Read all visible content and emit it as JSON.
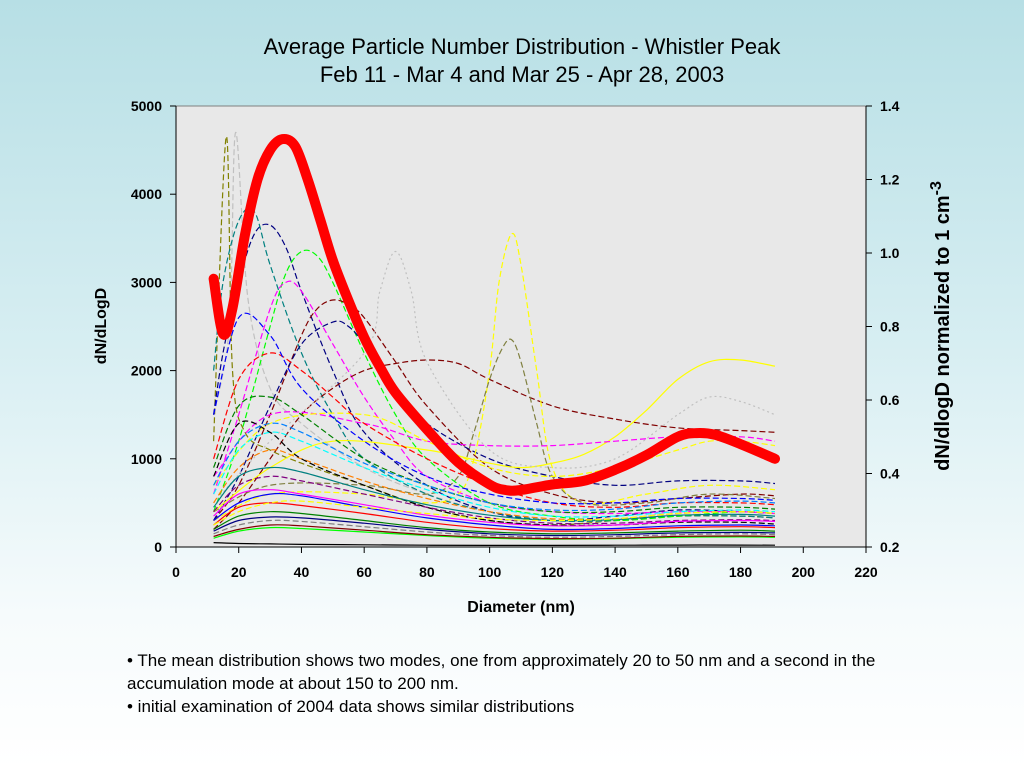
{
  "chart_data": {
    "type": "line",
    "title": "Average Particle Number Distribution - Whistler Peak",
    "subtitle": "Feb 11 - Mar 4 and Mar 25 - Apr 28, 2003",
    "xlabel": "Diameter (nm)",
    "ylabel": "dN/dLogD",
    "y2label_main": "dN/dlogD normalized to 1 cm",
    "y2label_sup": "-3",
    "xlim": [
      0,
      220
    ],
    "ylim": [
      0,
      5000
    ],
    "y2lim": [
      0.2,
      1.4
    ],
    "x_ticks": [
      "0",
      "20",
      "40",
      "60",
      "80",
      "100",
      "120",
      "140",
      "160",
      "180",
      "200",
      "220"
    ],
    "y_ticks": [
      "0",
      "1000",
      "2000",
      "3000",
      "4000",
      "5000"
    ],
    "y2_ticks": [
      "0.2",
      "0.4",
      "0.6",
      "0.8",
      "1.0",
      "1.2",
      "1.4"
    ],
    "plot_background": "#e8e8e8",
    "grid": false,
    "legend": "none",
    "mean_series": {
      "axis": "right",
      "color": "#ff0000",
      "x": [
        12,
        15,
        18,
        22,
        26,
        30,
        34,
        38,
        42,
        46,
        50,
        55,
        60,
        65,
        70,
        80,
        90,
        100,
        105,
        110,
        120,
        130,
        140,
        150,
        160,
        166,
        172,
        180,
        191
      ],
      "y": [
        0.93,
        0.78,
        0.85,
        1.05,
        1.2,
        1.28,
        1.31,
        1.29,
        1.2,
        1.09,
        0.98,
        0.87,
        0.77,
        0.69,
        0.62,
        0.52,
        0.43,
        0.37,
        0.355,
        0.355,
        0.37,
        0.38,
        0.41,
        0.45,
        0.5,
        0.51,
        0.505,
        0.48,
        0.44
      ]
    },
    "individual_series": [
      {
        "color": "#808000",
        "style": "dashed",
        "x": [
          12,
          16,
          18,
          22,
          30,
          40,
          60,
          80,
          100,
          120,
          140,
          160,
          180,
          191
        ],
        "y": [
          1200,
          4650,
          2000,
          1300,
          1100,
          950,
          700,
          450,
          300,
          250,
          300,
          350,
          350,
          330
        ]
      },
      {
        "color": "#c0c0c0",
        "style": "dashed",
        "x": [
          12,
          17,
          19,
          23,
          30,
          40,
          60,
          80,
          100,
          120,
          140,
          160,
          180,
          191
        ],
        "y": [
          1500,
          2500,
          4700,
          2800,
          1800,
          1400,
          900,
          600,
          400,
          300,
          300,
          400,
          400,
          380
        ]
      },
      {
        "color": "#000080",
        "style": "dashed",
        "x": [
          12,
          15,
          20,
          25,
          30,
          35,
          40,
          50,
          60,
          80,
          100,
          120,
          140,
          160,
          180,
          191
        ],
        "y": [
          1500,
          2200,
          3000,
          3550,
          3650,
          3400,
          2900,
          2000,
          1300,
          700,
          400,
          300,
          350,
          420,
          400,
          380
        ]
      },
      {
        "color": "#008080",
        "style": "dashed",
        "x": [
          12,
          15,
          20,
          25,
          30,
          40,
          50,
          60,
          80,
          100,
          120,
          140,
          160,
          180,
          191
        ],
        "y": [
          2000,
          3000,
          3700,
          3800,
          3200,
          2200,
          1500,
          1000,
          600,
          400,
          300,
          300,
          350,
          350,
          330
        ]
      },
      {
        "color": "#00ff00",
        "style": "dashed",
        "x": [
          12,
          20,
          30,
          35,
          40,
          45,
          50,
          60,
          70,
          80,
          100,
          120,
          140,
          160,
          180,
          191
        ],
        "y": [
          400,
          1200,
          2500,
          3100,
          3350,
          3300,
          3000,
          2200,
          1500,
          1000,
          500,
          350,
          300,
          350,
          400,
          380
        ]
      },
      {
        "color": "#ff00ff",
        "style": "dashed",
        "x": [
          12,
          20,
          30,
          35,
          40,
          50,
          60,
          70,
          80,
          100,
          120,
          140,
          160,
          180,
          191
        ],
        "y": [
          600,
          1500,
          2700,
          3000,
          2900,
          2300,
          1700,
          1200,
          800,
          500,
          400,
          380,
          400,
          400,
          380
        ]
      },
      {
        "color": "#800000",
        "style": "dashed",
        "x": [
          12,
          20,
          30,
          40,
          45,
          50,
          55,
          60,
          70,
          80,
          100,
          120,
          140,
          160,
          180,
          191
        ],
        "y": [
          300,
          700,
          1500,
          2400,
          2700,
          2800,
          2750,
          2600,
          2100,
          1600,
          900,
          600,
          500,
          550,
          600,
          580
        ]
      },
      {
        "color": "#800000",
        "style": "dashed",
        "x": [
          12,
          20,
          30,
          40,
          50,
          60,
          70,
          80,
          90,
          100,
          120,
          140,
          160,
          180,
          191
        ],
        "y": [
          200,
          500,
          1000,
          1500,
          1800,
          2000,
          2080,
          2120,
          2080,
          1900,
          1600,
          1450,
          1350,
          1320,
          1300
        ]
      },
      {
        "color": "#000080",
        "style": "dashed",
        "x": [
          12,
          20,
          30,
          40,
          50,
          55,
          60,
          70,
          80,
          100,
          120,
          140,
          160,
          180,
          191
        ],
        "y": [
          300,
          800,
          1600,
          2300,
          2550,
          2500,
          2300,
          1800,
          1400,
          1000,
          800,
          700,
          750,
          750,
          720
        ]
      },
      {
        "color": "#ffff00",
        "style": "dashed",
        "x": [
          12,
          30,
          60,
          80,
          90,
          95,
          100,
          103,
          107,
          110,
          115,
          120,
          130,
          150,
          170,
          191
        ],
        "y": [
          300,
          600,
          600,
          500,
          600,
          1000,
          2000,
          3000,
          3550,
          3200,
          2000,
          900,
          500,
          600,
          700,
          650
        ]
      },
      {
        "color": "#808040",
        "style": "dashed",
        "x": [
          12,
          30,
          60,
          80,
          90,
          95,
          100,
          104,
          107,
          110,
          115,
          120,
          130,
          150,
          170,
          191
        ],
        "y": [
          400,
          700,
          700,
          600,
          800,
          1300,
          1900,
          2250,
          2350,
          2100,
          1400,
          800,
          500,
          500,
          600,
          550
        ]
      },
      {
        "color": "#ffff00",
        "style": "solid",
        "x": [
          12,
          30,
          50,
          80,
          100,
          110,
          120,
          130,
          140,
          150,
          160,
          170,
          180,
          191
        ],
        "y": [
          400,
          900,
          1200,
          1100,
          950,
          900,
          950,
          1050,
          1250,
          1550,
          1900,
          2100,
          2120,
          2050
        ]
      },
      {
        "color": "#c0c0c0",
        "style": "dotted",
        "x": [
          12,
          30,
          60,
          65,
          70,
          75,
          80,
          100,
          120,
          140,
          160,
          170,
          180,
          191
        ],
        "y": [
          500,
          1200,
          2200,
          2900,
          3350,
          2900,
          2100,
          1100,
          900,
          1000,
          1500,
          1700,
          1650,
          1500
        ]
      },
      {
        "color": "#ff00ff",
        "style": "dashed",
        "x": [
          12,
          30,
          60,
          80,
          100,
          120,
          140,
          160,
          180,
          191
        ],
        "y": [
          800,
          1500,
          1400,
          1200,
          1150,
          1150,
          1200,
          1250,
          1250,
          1200
        ]
      },
      {
        "color": "#ffff00",
        "style": "dashed",
        "x": [
          12,
          30,
          60,
          80,
          100,
          120,
          140,
          160,
          170,
          180,
          191
        ],
        "y": [
          700,
          1400,
          1500,
          1200,
          900,
          800,
          900,
          1100,
          1200,
          1200,
          1150
        ]
      },
      {
        "color": "#ff0000",
        "style": "dashed",
        "x": [
          12,
          20,
          30,
          40,
          50,
          60,
          80,
          100,
          120,
          140,
          160,
          180,
          191
        ],
        "y": [
          1000,
          1900,
          2200,
          2000,
          1700,
          1400,
          1000,
          700,
          500,
          450,
          500,
          500,
          480
        ]
      },
      {
        "color": "#0000ff",
        "style": "dashed",
        "x": [
          12,
          20,
          30,
          40,
          60,
          80,
          100,
          120,
          140,
          160,
          180,
          191
        ],
        "y": [
          1500,
          2600,
          2400,
          1800,
          1200,
          800,
          600,
          500,
          500,
          550,
          550,
          530
        ]
      },
      {
        "color": "#008000",
        "style": "dashed",
        "x": [
          12,
          20,
          30,
          40,
          60,
          80,
          100,
          120,
          140,
          160,
          180,
          191
        ],
        "y": [
          900,
          1600,
          1700,
          1500,
          1000,
          700,
          500,
          400,
          400,
          450,
          450,
          430
        ]
      },
      {
        "color": "#00ffff",
        "style": "dashed",
        "x": [
          12,
          20,
          30,
          40,
          60,
          80,
          100,
          120,
          140,
          160,
          180,
          191
        ],
        "y": [
          600,
          1100,
          1300,
          1200,
          900,
          650,
          450,
          350,
          350,
          400,
          420,
          400
        ]
      },
      {
        "color": "#ff8000",
        "style": "dashed",
        "x": [
          12,
          20,
          30,
          40,
          60,
          80,
          100,
          120,
          140,
          160,
          180,
          191
        ],
        "y": [
          500,
          900,
          1100,
          1000,
          750,
          550,
          400,
          320,
          320,
          380,
          400,
          380
        ]
      },
      {
        "color": "#000000",
        "style": "dashed",
        "x": [
          12,
          20,
          30,
          40,
          60,
          80,
          100,
          120,
          140,
          160,
          180,
          191
        ],
        "y": [
          800,
          1400,
          1300,
          1000,
          700,
          450,
          300,
          250,
          250,
          280,
          280,
          260
        ]
      },
      {
        "color": "#000000",
        "style": "solid",
        "x": [
          12,
          20,
          30,
          40,
          60,
          80,
          100,
          120,
          140,
          160,
          180,
          191
        ],
        "y": [
          50,
          40,
          35,
          30,
          25,
          20,
          18,
          18,
          20,
          22,
          22,
          20
        ]
      },
      {
        "color": "#800080",
        "style": "dashed",
        "x": [
          12,
          20,
          30,
          40,
          60,
          80,
          100,
          120,
          140,
          160,
          180,
          191
        ],
        "y": [
          400,
          700,
          800,
          750,
          600,
          450,
          330,
          270,
          270,
          300,
          310,
          300
        ]
      },
      {
        "color": "#0000ff",
        "style": "solid",
        "x": [
          12,
          20,
          30,
          40,
          60,
          80,
          100,
          120,
          140,
          160,
          180,
          191
        ],
        "y": [
          300,
          500,
          600,
          580,
          450,
          330,
          250,
          200,
          210,
          240,
          250,
          240
        ]
      },
      {
        "color": "#ff0000",
        "style": "solid",
        "x": [
          12,
          20,
          30,
          40,
          60,
          80,
          100,
          120,
          140,
          160,
          180,
          191
        ],
        "y": [
          250,
          450,
          500,
          470,
          380,
          280,
          210,
          180,
          190,
          220,
          230,
          220
        ]
      },
      {
        "color": "#008000",
        "style": "solid",
        "x": [
          12,
          20,
          30,
          40,
          60,
          80,
          100,
          120,
          140,
          160,
          180,
          191
        ],
        "y": [
          200,
          350,
          400,
          380,
          300,
          220,
          170,
          150,
          160,
          180,
          190,
          180
        ]
      },
      {
        "color": "#808080",
        "style": "dashed",
        "x": [
          12,
          20,
          30,
          40,
          60,
          80,
          100,
          120,
          140,
          160,
          180,
          191
        ],
        "y": [
          150,
          250,
          300,
          290,
          230,
          170,
          130,
          110,
          120,
          140,
          150,
          140
        ]
      },
      {
        "color": "#00ff00",
        "style": "solid",
        "x": [
          12,
          20,
          30,
          40,
          60,
          80,
          100,
          120,
          140,
          160,
          180,
          191
        ],
        "y": [
          100,
          180,
          220,
          210,
          170,
          130,
          100,
          90,
          95,
          110,
          115,
          110
        ]
      },
      {
        "color": "#800000",
        "style": "solid",
        "x": [
          12,
          20,
          30,
          40,
          60,
          80,
          100,
          120,
          140,
          160,
          180,
          191
        ],
        "y": [
          120,
          200,
          250,
          240,
          190,
          140,
          110,
          95,
          100,
          120,
          125,
          120
        ]
      },
      {
        "color": "#0080ff",
        "style": "dashed",
        "x": [
          12,
          20,
          30,
          40,
          60,
          80,
          100,
          120,
          140,
          160,
          180,
          191
        ],
        "y": [
          700,
          1200,
          1400,
          1300,
          950,
          700,
          500,
          420,
          430,
          500,
          520,
          500
        ]
      },
      {
        "color": "#ff00ff",
        "style": "solid",
        "x": [
          12,
          20,
          30,
          40,
          60,
          80,
          100,
          120,
          140,
          160,
          180,
          191
        ],
        "y": [
          350,
          600,
          650,
          600,
          480,
          360,
          280,
          240,
          250,
          290,
          300,
          290
        ]
      },
      {
        "color": "#008080",
        "style": "solid",
        "x": [
          12,
          20,
          30,
          40,
          60,
          80,
          100,
          120,
          140,
          160,
          180,
          191
        ],
        "y": [
          450,
          800,
          900,
          850,
          650,
          480,
          360,
          300,
          310,
          360,
          370,
          350
        ]
      },
      {
        "color": "#ffff00",
        "style": "dashed",
        "x": [
          12,
          20,
          30,
          40,
          60,
          80,
          100,
          120,
          140,
          160,
          180,
          191
        ],
        "y": [
          250,
          400,
          500,
          520,
          450,
          380,
          320,
          300,
          320,
          380,
          400,
          380
        ]
      },
      {
        "color": "#000080",
        "style": "solid",
        "x": [
          12,
          20,
          30,
          40,
          60,
          80,
          100,
          120,
          140,
          160,
          180,
          191
        ],
        "y": [
          180,
          300,
          340,
          330,
          270,
          200,
          150,
          130,
          140,
          160,
          165,
          160
        ]
      }
    ]
  },
  "notes": {
    "bullet1": "•   The mean distribution shows two modes, one from approximately 20 to 50 nm and a second in the accumulation mode at about 150 to 200 nm.",
    "bullet2": "•  initial examination of 2004 data shows similar distributions"
  }
}
